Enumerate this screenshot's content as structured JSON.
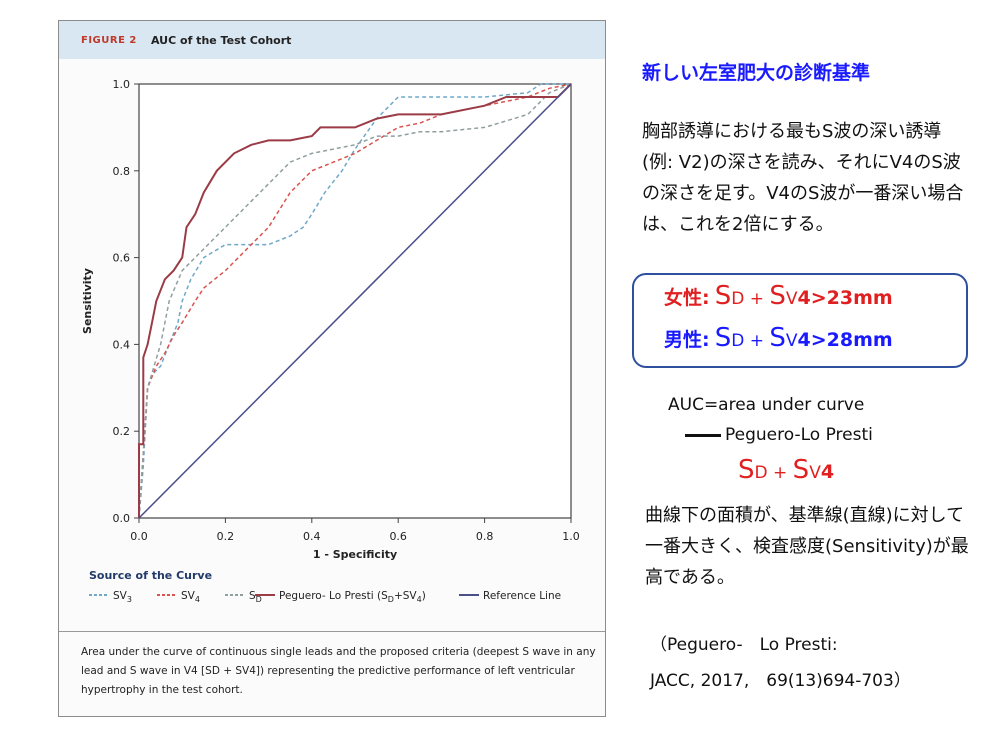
{
  "figure": {
    "label": "FIGURE 2",
    "title": "AUC of the Test Cohort",
    "caption": "Area under the curve of continuous single leads and the proposed criteria (deepest S wave in any lead and S wave in V4 [SD + SV4]) representing the predictive performance of left ventricular hypertrophy in the test cohort."
  },
  "chart_data": {
    "type": "line",
    "xlabel": "1 - Specificity",
    "ylabel": "Sensitivity",
    "xlim": [
      0,
      1
    ],
    "ylim": [
      0,
      1
    ],
    "xticks": [
      "0.0",
      "0.2",
      "0.4",
      "0.6",
      "0.8",
      "1.0"
    ],
    "yticks": [
      "0.0",
      "0.2",
      "0.4",
      "0.6",
      "0.8",
      "1.0"
    ],
    "grid": false,
    "legend_title": "Source of the Curve",
    "legend_position": "bottom",
    "series": [
      {
        "name": "SV3",
        "label_main": "SV",
        "label_sub": "3",
        "color": "#6fa8c8",
        "dash": "4,3",
        "points": [
          [
            0,
            0
          ],
          [
            0.01,
            0.12
          ],
          [
            0.02,
            0.3
          ],
          [
            0.03,
            0.33
          ],
          [
            0.05,
            0.35
          ],
          [
            0.07,
            0.4
          ],
          [
            0.09,
            0.45
          ],
          [
            0.1,
            0.5
          ],
          [
            0.12,
            0.55
          ],
          [
            0.15,
            0.6
          ],
          [
            0.2,
            0.63
          ],
          [
            0.25,
            0.63
          ],
          [
            0.3,
            0.63
          ],
          [
            0.35,
            0.65
          ],
          [
            0.38,
            0.67
          ],
          [
            0.4,
            0.7
          ],
          [
            0.43,
            0.75
          ],
          [
            0.47,
            0.8
          ],
          [
            0.5,
            0.85
          ],
          [
            0.55,
            0.92
          ],
          [
            0.6,
            0.97
          ],
          [
            0.7,
            0.97
          ],
          [
            0.8,
            0.97
          ],
          [
            0.9,
            0.98
          ],
          [
            0.93,
            1.0
          ],
          [
            1.0,
            1.0
          ]
        ]
      },
      {
        "name": "SV4",
        "label_main": "SV",
        "label_sub": "4",
        "color": "#d9534f",
        "dash": "4,3",
        "points": [
          [
            0,
            0
          ],
          [
            0.01,
            0.15
          ],
          [
            0.02,
            0.3
          ],
          [
            0.04,
            0.35
          ],
          [
            0.06,
            0.38
          ],
          [
            0.08,
            0.42
          ],
          [
            0.1,
            0.45
          ],
          [
            0.13,
            0.5
          ],
          [
            0.15,
            0.53
          ],
          [
            0.2,
            0.57
          ],
          [
            0.25,
            0.62
          ],
          [
            0.3,
            0.67
          ],
          [
            0.35,
            0.75
          ],
          [
            0.4,
            0.8
          ],
          [
            0.45,
            0.82
          ],
          [
            0.5,
            0.84
          ],
          [
            0.55,
            0.87
          ],
          [
            0.6,
            0.9
          ],
          [
            0.65,
            0.91
          ],
          [
            0.7,
            0.93
          ],
          [
            0.8,
            0.95
          ],
          [
            0.9,
            0.97
          ],
          [
            0.95,
            0.99
          ],
          [
            1.0,
            1.0
          ]
        ]
      },
      {
        "name": "SD",
        "label_main": "S",
        "label_sub": "D",
        "color": "#8f9f9f",
        "dash": "4,3",
        "points": [
          [
            0,
            0
          ],
          [
            0.01,
            0.15
          ],
          [
            0.02,
            0.3
          ],
          [
            0.05,
            0.4
          ],
          [
            0.07,
            0.5
          ],
          [
            0.1,
            0.57
          ],
          [
            0.15,
            0.62
          ],
          [
            0.2,
            0.67
          ],
          [
            0.25,
            0.72
          ],
          [
            0.3,
            0.77
          ],
          [
            0.35,
            0.82
          ],
          [
            0.4,
            0.84
          ],
          [
            0.45,
            0.85
          ],
          [
            0.5,
            0.86
          ],
          [
            0.55,
            0.88
          ],
          [
            0.6,
            0.88
          ],
          [
            0.65,
            0.89
          ],
          [
            0.7,
            0.89
          ],
          [
            0.8,
            0.9
          ],
          [
            0.9,
            0.93
          ],
          [
            0.95,
            0.98
          ],
          [
            1.0,
            1.0
          ]
        ]
      },
      {
        "name": "Peguero- Lo Presti (SD+SV4)",
        "label_main": "Peguero- Lo Presti (S",
        "label_sub": "D",
        "label_mid": "+SV",
        "label_sub2": "4",
        "label_end": ")",
        "color": "#9a3b46",
        "dash": "",
        "points": [
          [
            0,
            0
          ],
          [
            0,
            0.17
          ],
          [
            0.01,
            0.17
          ],
          [
            0.01,
            0.37
          ],
          [
            0.02,
            0.4
          ],
          [
            0.03,
            0.45
          ],
          [
            0.04,
            0.5
          ],
          [
            0.06,
            0.55
          ],
          [
            0.08,
            0.57
          ],
          [
            0.1,
            0.6
          ],
          [
            0.11,
            0.67
          ],
          [
            0.13,
            0.7
          ],
          [
            0.15,
            0.75
          ],
          [
            0.18,
            0.8
          ],
          [
            0.22,
            0.84
          ],
          [
            0.26,
            0.86
          ],
          [
            0.3,
            0.87
          ],
          [
            0.35,
            0.87
          ],
          [
            0.4,
            0.88
          ],
          [
            0.42,
            0.9
          ],
          [
            0.5,
            0.9
          ],
          [
            0.55,
            0.92
          ],
          [
            0.6,
            0.93
          ],
          [
            0.7,
            0.93
          ],
          [
            0.8,
            0.95
          ],
          [
            0.85,
            0.97
          ],
          [
            0.9,
            0.97
          ],
          [
            0.95,
            0.97
          ],
          [
            0.97,
            0.97
          ],
          [
            1.0,
            1.0
          ]
        ]
      },
      {
        "name": "Reference Line",
        "label_main": "Reference Line",
        "color": "#4a4f8a",
        "dash": "",
        "points": [
          [
            0,
            0
          ],
          [
            1,
            1
          ]
        ]
      }
    ]
  },
  "right": {
    "title": "新しい左室肥大の診断基準",
    "desc": "胸部誘導における最もS波の深い誘導(例: V2)の深さを読み、それにV4のS波の深さを足す。V4のS波が一番深い場合は、これを2倍にする。",
    "female_label": "女性:",
    "male_label": "男性:",
    "s_char": "S",
    "d_sub": "D",
    "plus": " + ",
    "v_sub": "V",
    "four": "4",
    "female_value": ">23mm",
    "male_value": ">28mm",
    "female_color": "#e02020",
    "male_color": "#1a1aff",
    "auc_def": "AUC=area under curve",
    "pl_name": "Peguero-Lo Presti",
    "desc2": "曲線下の面積が、基準線(直線)に対して一番大きく、検査感度(Sensitivity)が最高である。",
    "ref1": "（Peguero-　Lo Presti:",
    "ref2": "JACC, 2017,　69(13)694-703）"
  }
}
